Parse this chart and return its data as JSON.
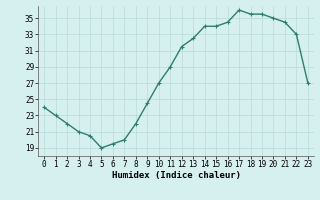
{
  "x": [
    0,
    1,
    2,
    3,
    4,
    5,
    6,
    7,
    8,
    9,
    10,
    11,
    12,
    13,
    14,
    15,
    16,
    17,
    18,
    19,
    20,
    21,
    22,
    23
  ],
  "y": [
    24,
    23,
    22,
    21,
    20.5,
    19,
    19.5,
    20,
    22,
    24.5,
    27,
    29,
    31.5,
    32.5,
    34,
    34,
    34.5,
    36,
    35.5,
    35.5,
    35,
    34.5,
    33,
    27
  ],
  "line_color": "#2e7d6e",
  "marker_color": "#2e7d6e",
  "bg_color": "#d6f0f0",
  "grid_color": "#b8dada",
  "xlabel": "Humidex (Indice chaleur)",
  "xlim": [
    -0.5,
    23.5
  ],
  "ylim": [
    18.0,
    36.5
  ],
  "yticks": [
    19,
    21,
    23,
    25,
    27,
    29,
    31,
    33,
    35
  ],
  "xticks": [
    0,
    1,
    2,
    3,
    4,
    5,
    6,
    7,
    8,
    9,
    10,
    11,
    12,
    13,
    14,
    15,
    16,
    17,
    18,
    19,
    20,
    21,
    22,
    23
  ],
  "tick_fontsize": 5.5,
  "xlabel_fontsize": 6.5,
  "linewidth": 1.0,
  "markersize": 2.5,
  "spine_color": "#555555"
}
